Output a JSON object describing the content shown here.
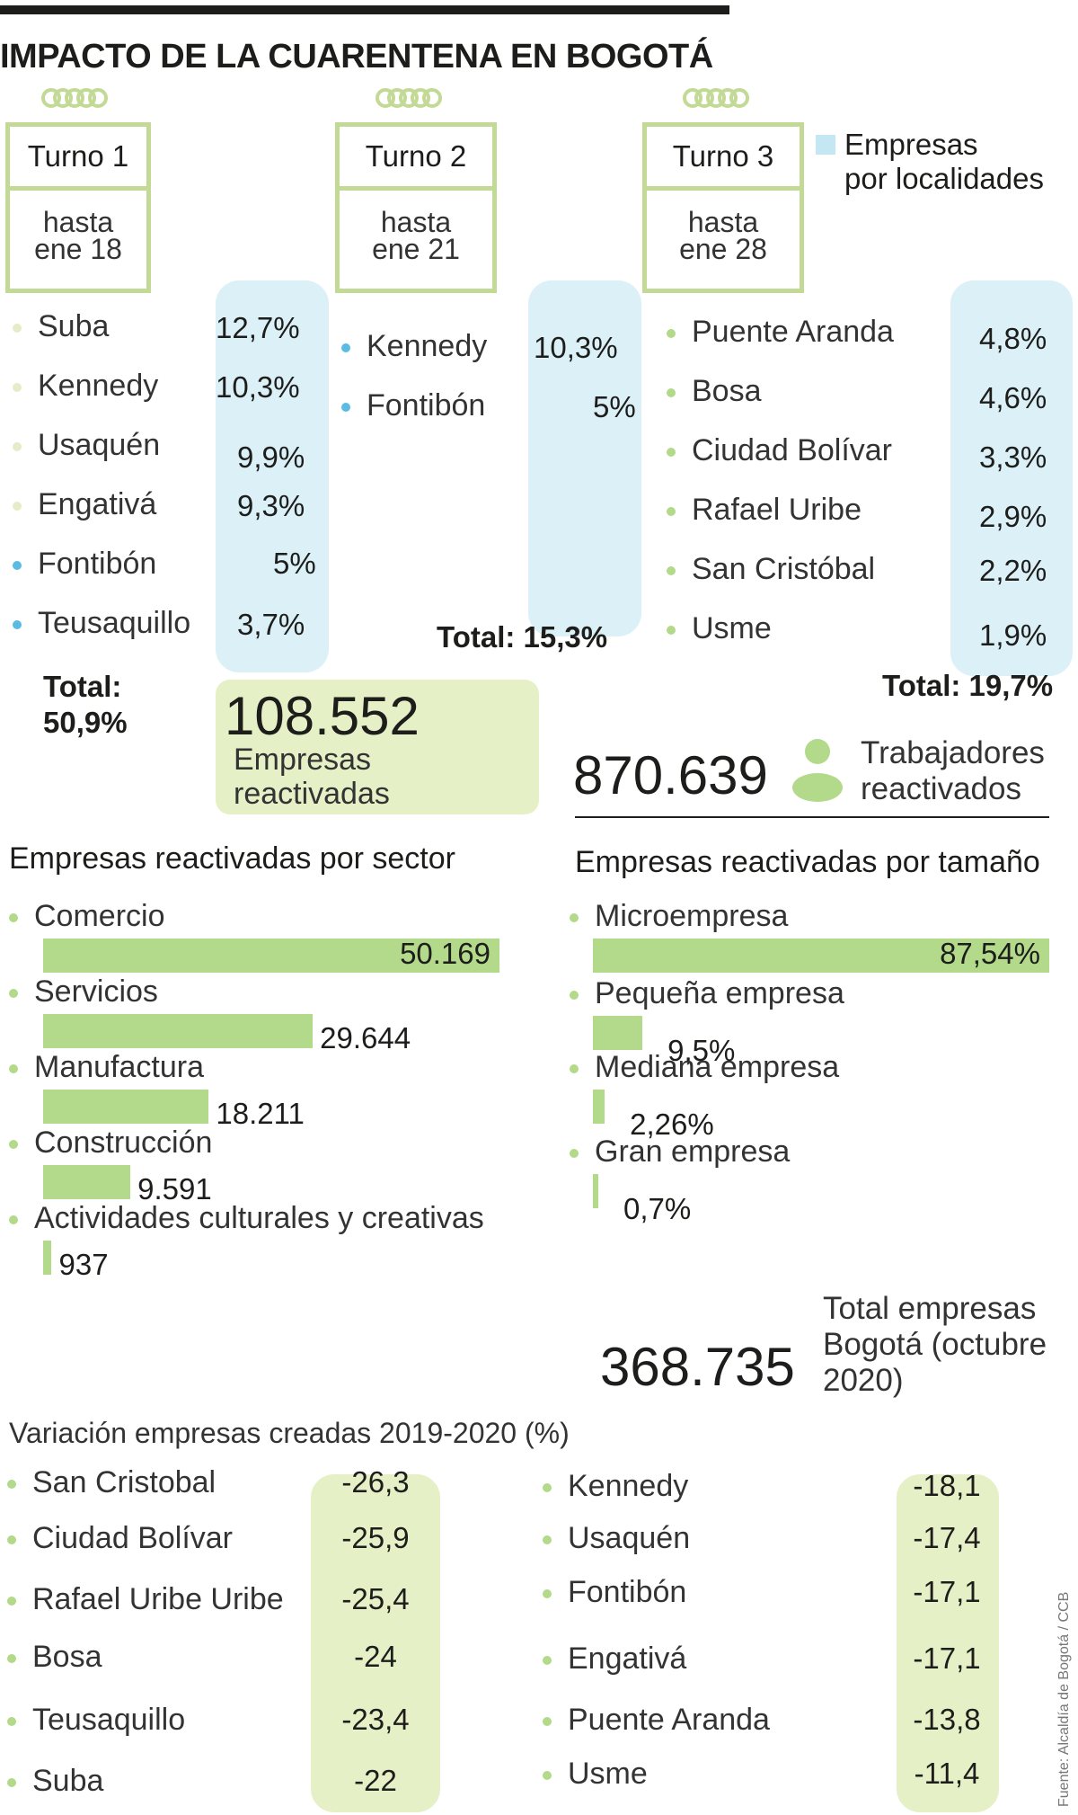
{
  "title": "IMPACTO DE LA CUARENTENA EN BOGOTÁ",
  "legend": {
    "line1": "Empresas",
    "line2": "por localidades",
    "color": "#c5e6f3"
  },
  "turnos": [
    {
      "label": "Turno 1",
      "sub1": "hasta",
      "sub2": "ene 18",
      "items": [
        {
          "name": "Suba",
          "pct": "12,7%",
          "dot": "light"
        },
        {
          "name": "Kennedy",
          "pct": "10,3%",
          "dot": "light"
        },
        {
          "name": "Usaquén",
          "pct": "9,9%",
          "dot": "light"
        },
        {
          "name": "Engativá",
          "pct": "9,3%",
          "dot": "light"
        },
        {
          "name": "Fontibón",
          "pct": "5%",
          "dot": "blue"
        },
        {
          "name": "Teusaquillo",
          "pct": "3,7%",
          "dot": "blue"
        }
      ],
      "total_line1": "Total:",
      "total_line2": "50,9%"
    },
    {
      "label": "Turno 2",
      "sub1": "hasta",
      "sub2": "ene 21",
      "items": [
        {
          "name": "Kennedy",
          "pct": "10,3%",
          "dot": "blue"
        },
        {
          "name": "Fontibón",
          "pct": "5%",
          "dot": "blue"
        }
      ],
      "total": "Total: 15,3%"
    },
    {
      "label": "Turno 3",
      "sub1": "hasta",
      "sub2": "ene 28",
      "items": [
        {
          "name": "Puente Aranda",
          "pct": "4,8%",
          "dot": "green"
        },
        {
          "name": "Bosa",
          "pct": "4,6%",
          "dot": "green"
        },
        {
          "name": "Ciudad Bolívar",
          "pct": "3,3%",
          "dot": "green"
        },
        {
          "name": "Rafael Uribe",
          "pct": "2,9%",
          "dot": "green"
        },
        {
          "name": "San Cristóbal",
          "pct": "2,2%",
          "dot": "green"
        },
        {
          "name": "Usme",
          "pct": "1,9%",
          "dot": "green"
        }
      ],
      "total": "Total: 19,7%"
    }
  ],
  "empresas_reactivadas": {
    "value": "108.552",
    "line1": "Empresas",
    "line2": "reactivadas"
  },
  "trabajadores": {
    "value": "870.639",
    "line1": "Trabajadores",
    "line2": "reactivados"
  },
  "total_empresas": {
    "value": "368.735",
    "line1": "Total empresas",
    "line2": "Bogotá (octubre",
    "line3": "2020)"
  },
  "variacion": {
    "title": "Variación empresas  creadas 2019-2020 (%)",
    "left": [
      {
        "name": "San Cristobal",
        "value": "-26,3"
      },
      {
        "name": "Ciudad Bolívar",
        "value": "-25,9"
      },
      {
        "name": "Rafael Uribe Uribe",
        "value": "-25,4"
      },
      {
        "name": "Bosa",
        "value": "-24"
      },
      {
        "name": "Teusaquillo",
        "value": "-23,4"
      },
      {
        "name": "Suba",
        "value": "-22"
      }
    ],
    "right": [
      {
        "name": "Kennedy",
        "value": "-18,1"
      },
      {
        "name": "Usaquén",
        "value": "-17,4"
      },
      {
        "name": "Fontibón",
        "value": "-17,1"
      },
      {
        "name": "Engativá",
        "value": "-17,1"
      },
      {
        "name": "Puente Aranda",
        "value": "-13,8"
      },
      {
        "name": "Usme",
        "value": "-11,4"
      }
    ]
  },
  "source": "Fuente: Alcaldía de Bogotá / CCB",
  "colors": {
    "bar": "#b3d98b",
    "pill_blue": "#dcf0f8",
    "pill_green": "#e6f0c6",
    "frame": "#c3d996"
  },
  "chart_data": [
    {
      "type": "bar",
      "title": "Empresas reactivadas por sector",
      "categories": [
        "Comercio",
        "Servicios",
        "Manufactura",
        "Construcción",
        "Actividades culturales y creativas"
      ],
      "values": [
        50169,
        29644,
        18211,
        9591,
        937
      ],
      "value_labels": [
        "50.169",
        "29.644",
        "18.211",
        "9.591",
        "937"
      ],
      "xlim": [
        0,
        50169
      ]
    },
    {
      "type": "bar",
      "title": "Empresas reactivadas por tamaño",
      "categories": [
        "Microempresa",
        "Pequeña empresa",
        "Mediana empresa",
        "Gran empresa"
      ],
      "values": [
        87.54,
        9.5,
        2.26,
        0.7
      ],
      "value_labels": [
        "87,54%",
        "9,5%",
        "2,26%",
        "0,7%"
      ],
      "xlim": [
        0,
        87.54
      ]
    }
  ]
}
